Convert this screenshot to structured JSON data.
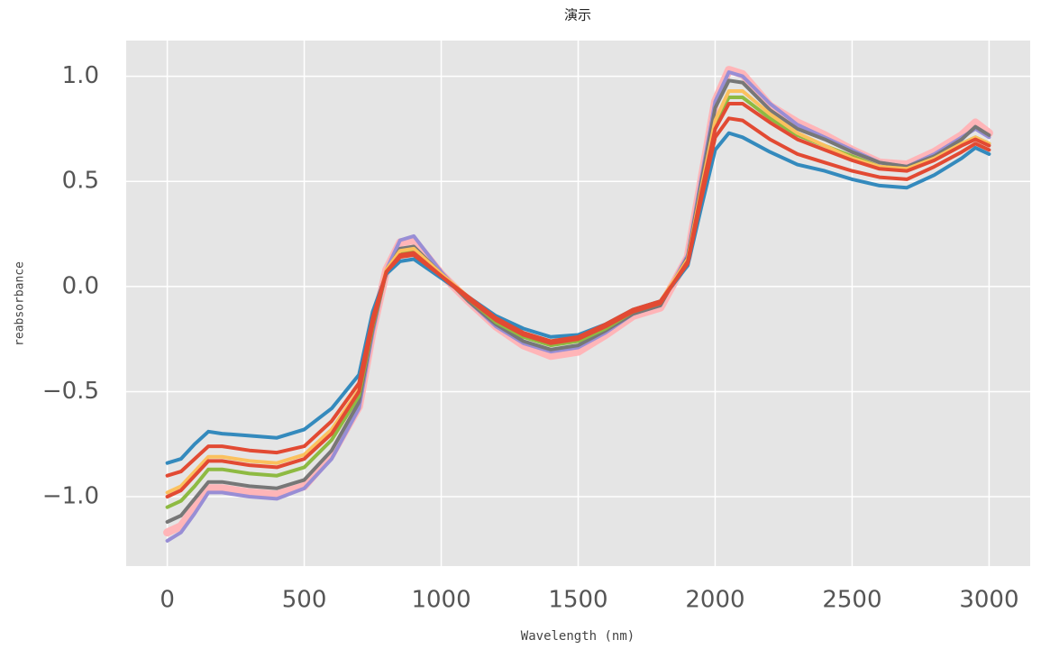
{
  "chart_data": {
    "type": "line",
    "title": "演示",
    "x_label": "Wavelength (nm)",
    "y_label": "reabsorbance",
    "x": [
      0,
      50,
      100,
      150,
      200,
      300,
      400,
      500,
      600,
      700,
      750,
      800,
      850,
      900,
      1000,
      1100,
      1200,
      1300,
      1400,
      1500,
      1600,
      1700,
      1800,
      1900,
      1950,
      2000,
      2050,
      2100,
      2200,
      2300,
      2400,
      2500,
      2600,
      2700,
      2800,
      2900,
      2950,
      3000
    ],
    "series": [
      {
        "color": "#FFB5B8",
        "values": [
          -1.17,
          -1.14,
          -1.05,
          -0.96,
          -0.96,
          -0.98,
          -0.99,
          -0.95,
          -0.8,
          -0.57,
          -0.21,
          0.08,
          0.21,
          0.22,
          0.06,
          -0.07,
          -0.19,
          -0.28,
          -0.33,
          -0.31,
          -0.23,
          -0.14,
          -0.1,
          0.14,
          0.51,
          0.88,
          1.03,
          1.01,
          0.86,
          0.78,
          0.72,
          0.65,
          0.59,
          0.58,
          0.64,
          0.72,
          0.78,
          0.73
        ]
      },
      {
        "color": "#988ED5",
        "values": [
          -1.21,
          -1.17,
          -1.08,
          -0.98,
          -0.98,
          -1.0,
          -1.01,
          -0.96,
          -0.82,
          -0.58,
          -0.22,
          0.08,
          0.22,
          0.24,
          0.07,
          -0.07,
          -0.19,
          -0.27,
          -0.31,
          -0.29,
          -0.22,
          -0.13,
          -0.09,
          0.15,
          0.52,
          0.88,
          1.02,
          1.0,
          0.87,
          0.77,
          0.71,
          0.65,
          0.59,
          0.57,
          0.63,
          0.71,
          0.75,
          0.71
        ]
      },
      {
        "color": "#777777",
        "values": [
          -1.12,
          -1.09,
          -1.01,
          -0.93,
          -0.93,
          -0.95,
          -0.96,
          -0.92,
          -0.78,
          -0.55,
          -0.2,
          0.07,
          0.18,
          0.19,
          0.06,
          -0.07,
          -0.18,
          -0.26,
          -0.3,
          -0.28,
          -0.21,
          -0.13,
          -0.09,
          0.14,
          0.5,
          0.85,
          0.98,
          0.97,
          0.84,
          0.75,
          0.7,
          0.64,
          0.59,
          0.57,
          0.62,
          0.7,
          0.76,
          0.72
        ]
      },
      {
        "color": "#8EBA42",
        "values": [
          -1.05,
          -1.02,
          -0.95,
          -0.87,
          -0.87,
          -0.89,
          -0.9,
          -0.86,
          -0.73,
          -0.52,
          -0.19,
          0.07,
          0.16,
          0.17,
          0.05,
          -0.06,
          -0.17,
          -0.24,
          -0.28,
          -0.26,
          -0.2,
          -0.12,
          -0.08,
          0.13,
          0.46,
          0.78,
          0.9,
          0.9,
          0.8,
          0.72,
          0.67,
          0.62,
          0.57,
          0.56,
          0.61,
          0.68,
          0.71,
          0.68
        ]
      },
      {
        "color": "#FBC15E",
        "values": [
          -0.98,
          -0.95,
          -0.88,
          -0.81,
          -0.81,
          -0.83,
          -0.84,
          -0.8,
          -0.68,
          -0.49,
          -0.17,
          0.08,
          0.17,
          0.18,
          0.06,
          -0.05,
          -0.15,
          -0.22,
          -0.26,
          -0.24,
          -0.18,
          -0.11,
          -0.07,
          0.13,
          0.47,
          0.79,
          0.93,
          0.93,
          0.82,
          0.73,
          0.67,
          0.61,
          0.57,
          0.56,
          0.61,
          0.68,
          0.71,
          0.68
        ]
      },
      {
        "color": "#348ABD",
        "values": [
          -0.84,
          -0.82,
          -0.75,
          -0.69,
          -0.7,
          -0.71,
          -0.72,
          -0.68,
          -0.58,
          -0.42,
          -0.12,
          0.06,
          0.12,
          0.13,
          0.04,
          -0.05,
          -0.14,
          -0.2,
          -0.24,
          -0.23,
          -0.18,
          -0.11,
          -0.07,
          0.1,
          0.38,
          0.65,
          0.73,
          0.71,
          0.64,
          0.58,
          0.55,
          0.51,
          0.48,
          0.47,
          0.53,
          0.61,
          0.66,
          0.63
        ]
      },
      {
        "color": "#E24A33",
        "values": [
          -0.9,
          -0.88,
          -0.82,
          -0.76,
          -0.76,
          -0.78,
          -0.79,
          -0.76,
          -0.64,
          -0.46,
          -0.15,
          0.07,
          0.14,
          0.15,
          0.05,
          -0.05,
          -0.15,
          -0.22,
          -0.26,
          -0.24,
          -0.18,
          -0.11,
          -0.07,
          0.11,
          0.42,
          0.71,
          0.8,
          0.79,
          0.7,
          0.63,
          0.59,
          0.55,
          0.52,
          0.51,
          0.57,
          0.64,
          0.68,
          0.65
        ]
      },
      {
        "color": "#E24A33",
        "values": [
          -1.0,
          -0.97,
          -0.9,
          -0.83,
          -0.83,
          -0.85,
          -0.86,
          -0.82,
          -0.7,
          -0.5,
          -0.18,
          0.07,
          0.15,
          0.16,
          0.05,
          -0.06,
          -0.16,
          -0.23,
          -0.27,
          -0.25,
          -0.19,
          -0.12,
          -0.08,
          0.12,
          0.45,
          0.75,
          0.87,
          0.87,
          0.78,
          0.7,
          0.65,
          0.6,
          0.56,
          0.55,
          0.6,
          0.67,
          0.7,
          0.67
        ]
      }
    ],
    "xlim": [
      -150,
      3150
    ],
    "ylim": [
      -1.33,
      1.17
    ],
    "xticks": [
      0,
      500,
      1000,
      1500,
      2000,
      2500,
      3000
    ],
    "yticks": [
      {
        "value": -1,
        "label": "−1.0"
      },
      {
        "value": -0.5,
        "label": "−0.5"
      },
      {
        "value": 0,
        "label": "0.0"
      },
      {
        "value": 0.5,
        "label": "0.5"
      },
      {
        "value": 1,
        "label": "1.0"
      }
    ],
    "grid": true
  }
}
